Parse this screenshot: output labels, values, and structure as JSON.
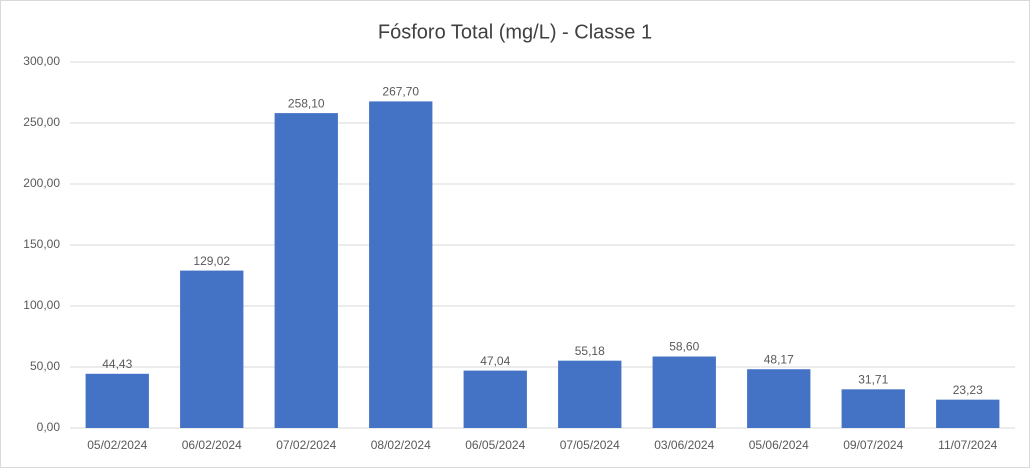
{
  "chart_data": {
    "type": "bar",
    "title": "Fósforo Total (mg/L) - Classe 1",
    "categories": [
      "05/02/2024",
      "06/02/2024",
      "07/02/2024",
      "08/02/2024",
      "06/05/2024",
      "07/05/2024",
      "03/06/2024",
      "05/06/2024",
      "09/07/2024",
      "11/07/2024"
    ],
    "values": [
      44.43,
      129.02,
      258.1,
      267.7,
      47.04,
      55.18,
      58.6,
      48.17,
      31.71,
      23.23
    ],
    "value_labels": [
      "44,43",
      "129,02",
      "258,10",
      "267,70",
      "47,04",
      "55,18",
      "58,60",
      "48,17",
      "31,71",
      "23,23"
    ],
    "color": "#4472c4",
    "ylim": [
      0,
      300
    ],
    "yticks": [
      {
        "value": 0,
        "label": "0,00"
      },
      {
        "value": 50,
        "label": "50,00"
      },
      {
        "value": 100,
        "label": "100,00"
      },
      {
        "value": 150,
        "label": "150,00"
      },
      {
        "value": 200,
        "label": "200,00"
      },
      {
        "value": 250,
        "label": "250,00"
      },
      {
        "value": 300,
        "label": "300,00"
      }
    ],
    "grid": true
  }
}
